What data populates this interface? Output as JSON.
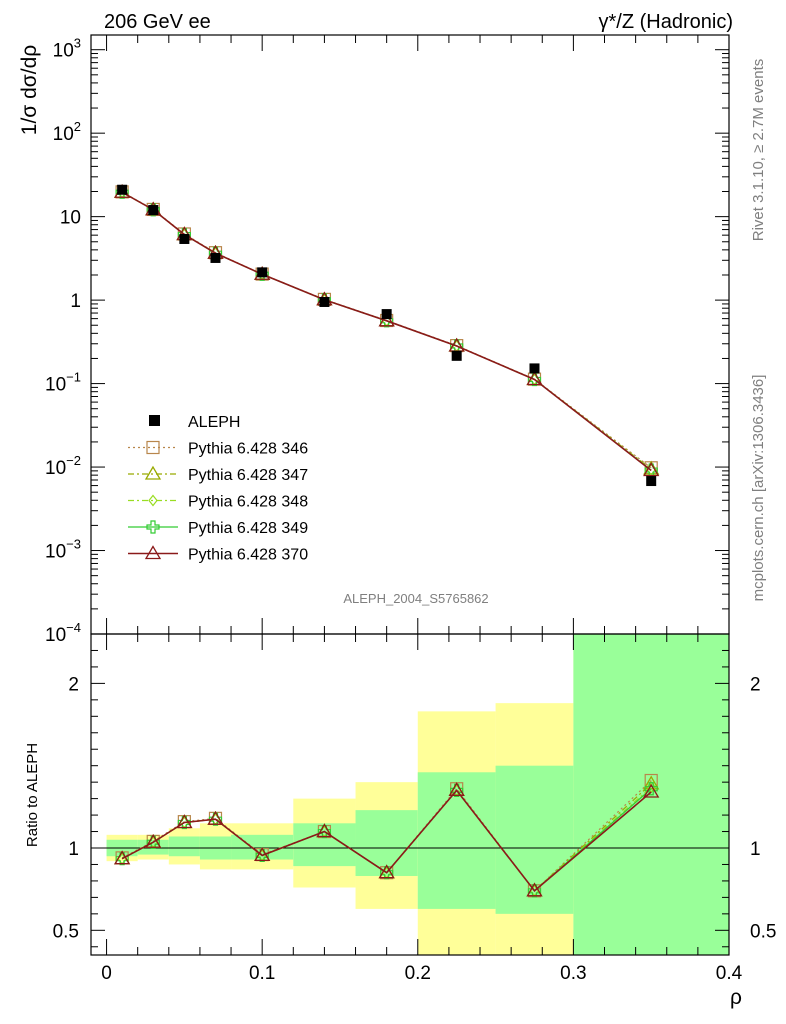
{
  "chart_data": [
    {
      "type": "scatter",
      "panel": "main",
      "title_left": "206 GeV ee",
      "title_right": "γ*/Z (Hadronic)",
      "ylabel": "1/σ  dσ/dρ",
      "yscale": "log",
      "ylim": [
        0.0001,
        1500
      ],
      "xlim": [
        -0.01,
        0.4
      ],
      "yticks": [
        {
          "v": 0.0001,
          "base": "10",
          "exp": "−4"
        },
        {
          "v": 0.001,
          "base": "10",
          "exp": "−3"
        },
        {
          "v": 0.01,
          "base": "10",
          "exp": "−2"
        },
        {
          "v": 0.1,
          "base": "10",
          "exp": "−1"
        },
        {
          "v": 1,
          "base": "1",
          "exp": ""
        },
        {
          "v": 10,
          "base": "10",
          "exp": ""
        },
        {
          "v": 100,
          "base": "10",
          "exp": "2"
        },
        {
          "v": 1000,
          "base": "10",
          "exp": "3"
        }
      ],
      "watermark": "ALEPH_2004_S5765862",
      "legend_position": "lower-left",
      "x": [
        0.01,
        0.03,
        0.05,
        0.07,
        0.1,
        0.14,
        0.18,
        0.225,
        0.275,
        0.35
      ],
      "data_series": {
        "name": "ALEPH",
        "color": "#000000",
        "values": [
          21.0,
          12.0,
          5.4,
          3.2,
          2.15,
          0.95,
          0.68,
          0.215,
          0.152,
          0.0068
        ]
      },
      "series": [
        {
          "name": "Pythia 6.428 346",
          "color": "#b8864b",
          "marker": "square",
          "dash": "2,3",
          "values": [
            19.8,
            12.2,
            6.2,
            3.7,
            2.05,
            1.02,
            0.57,
            0.285,
            0.113,
            0.0098
          ]
        },
        {
          "name": "Pythia 6.428 347",
          "color": "#99aa00",
          "marker": "triangle",
          "dash": "6,3,2,3",
          "values": [
            19.6,
            12.1,
            6.1,
            3.65,
            2.04,
            1.01,
            0.565,
            0.282,
            0.112,
            0.0095
          ]
        },
        {
          "name": "Pythia 6.428 348",
          "color": "#99dd22",
          "marker": "diamond",
          "dash": "6,3,2,3",
          "values": [
            19.6,
            12.1,
            6.1,
            3.65,
            2.04,
            1.01,
            0.565,
            0.282,
            0.112,
            0.0093
          ]
        },
        {
          "name": "Pythia 6.428 349",
          "color": "#33cc33",
          "marker": "cross",
          "dash": "",
          "values": [
            19.6,
            12.1,
            6.1,
            3.65,
            2.04,
            1.01,
            0.565,
            0.282,
            0.112,
            0.0092
          ]
        },
        {
          "name": "Pythia 6.428 370",
          "color": "#8b1a1a",
          "marker": "triangle",
          "dash": "",
          "values": [
            19.6,
            12.1,
            6.1,
            3.65,
            2.04,
            1.01,
            0.565,
            0.282,
            0.112,
            0.0091
          ]
        }
      ]
    },
    {
      "type": "line",
      "panel": "ratio",
      "ylabel": "Ratio to ALEPH",
      "xlabel": "ρ",
      "ylim": [
        0.35,
        2.3
      ],
      "yticks": [
        0.5,
        1,
        2
      ],
      "ytick_labels": [
        "0.5",
        "1",
        "2"
      ],
      "xticks": [
        0,
        0.1,
        0.2,
        0.3,
        0.4
      ],
      "xtick_labels": [
        "0",
        "0.1",
        "0.2",
        "0.3",
        "0.4"
      ],
      "bands": [
        {
          "x0": 0.0,
          "x1": 0.02,
          "y1_lo": 0.95,
          "y1_hi": 1.05,
          "y2_lo": 0.92,
          "y2_hi": 1.08
        },
        {
          "x0": 0.02,
          "x1": 0.04,
          "y1_lo": 0.96,
          "y1_hi": 1.05,
          "y2_lo": 0.93,
          "y2_hi": 1.08
        },
        {
          "x0": 0.04,
          "x1": 0.06,
          "y1_lo": 0.95,
          "y1_hi": 1.07,
          "y2_lo": 0.9,
          "y2_hi": 1.12
        },
        {
          "x0": 0.06,
          "x1": 0.08,
          "y1_lo": 0.93,
          "y1_hi": 1.07,
          "y2_lo": 0.87,
          "y2_hi": 1.15
        },
        {
          "x0": 0.08,
          "x1": 0.12,
          "y1_lo": 0.93,
          "y1_hi": 1.08,
          "y2_lo": 0.87,
          "y2_hi": 1.15
        },
        {
          "x0": 0.12,
          "x1": 0.16,
          "y1_lo": 0.89,
          "y1_hi": 1.15,
          "y2_lo": 0.76,
          "y2_hi": 1.3
        },
        {
          "x0": 0.16,
          "x1": 0.2,
          "y1_lo": 0.83,
          "y1_hi": 1.23,
          "y2_lo": 0.63,
          "y2_hi": 1.4
        },
        {
          "x0": 0.2,
          "x1": 0.25,
          "y1_lo": 0.63,
          "y1_hi": 1.46,
          "y2_lo": 0.3,
          "y2_hi": 1.83
        },
        {
          "x0": 0.25,
          "x1": 0.3,
          "y1_lo": 0.6,
          "y1_hi": 1.5,
          "y2_lo": 0.3,
          "y2_hi": 1.88
        },
        {
          "x0": 0.3,
          "x1": 0.4,
          "y1_lo": 0.3,
          "y1_hi": 2.5,
          "y2_lo": 0.3,
          "y2_hi": 2.5
        }
      ],
      "ratio_series": [
        {
          "name": "Pythia 6.428 346",
          "values": [
            0.94,
            1.04,
            1.16,
            1.18,
            0.96,
            1.1,
            0.85,
            1.36,
            0.74,
            1.41
          ]
        },
        {
          "name": "Pythia 6.428 347",
          "values": [
            0.935,
            1.035,
            1.155,
            1.175,
            0.955,
            1.1,
            0.85,
            1.35,
            0.74,
            1.39
          ]
        },
        {
          "name": "Pythia 6.428 348",
          "values": [
            0.935,
            1.035,
            1.155,
            1.175,
            0.955,
            1.1,
            0.85,
            1.35,
            0.74,
            1.37
          ]
        },
        {
          "name": "Pythia 6.428 349",
          "values": [
            0.935,
            1.035,
            1.155,
            1.175,
            0.955,
            1.1,
            0.85,
            1.35,
            0.74,
            1.36
          ]
        },
        {
          "name": "Pythia 6.428 370",
          "values": [
            0.935,
            1.035,
            1.155,
            1.175,
            0.955,
            1.1,
            0.85,
            1.35,
            0.74,
            1.34
          ]
        }
      ]
    }
  ],
  "side_text": {
    "rivet": "Rivet 3.1.10, ≥ 2.7M events",
    "mcplots": "mcplots.cern.ch [arXiv:1306.3436]"
  },
  "colors": {
    "band_inner": "#99ff99",
    "band_outer": "#ffff99"
  }
}
